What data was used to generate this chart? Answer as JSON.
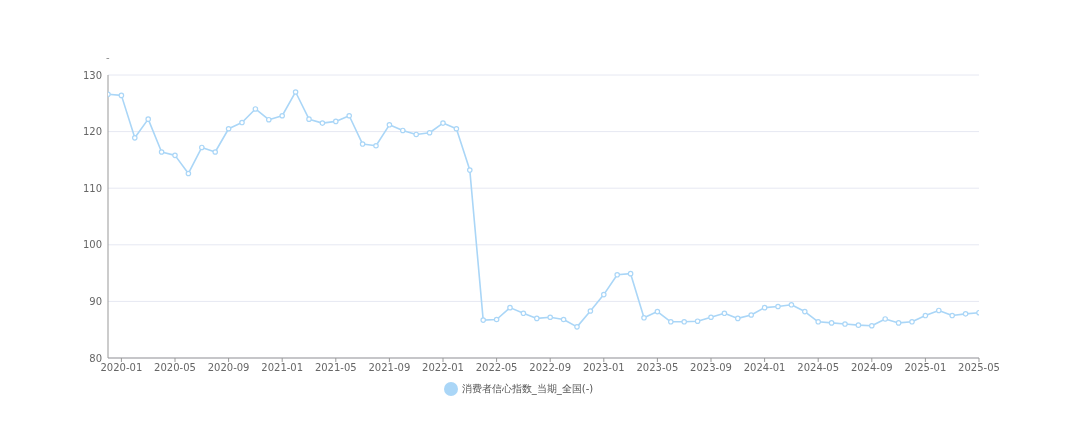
{
  "chart_data": {
    "type": "line",
    "title": "-",
    "x": [
      "2019-12",
      "2020-01",
      "2020-02",
      "2020-03",
      "2020-04",
      "2020-05",
      "2020-06",
      "2020-07",
      "2020-08",
      "2020-09",
      "2020-10",
      "2020-11",
      "2020-12",
      "2021-01",
      "2021-02",
      "2021-03",
      "2021-04",
      "2021-05",
      "2021-06",
      "2021-07",
      "2021-08",
      "2021-09",
      "2021-10",
      "2021-11",
      "2021-12",
      "2022-01",
      "2022-02",
      "2022-03",
      "2022-04",
      "2022-05",
      "2022-06",
      "2022-07",
      "2022-08",
      "2022-09",
      "2022-10",
      "2022-11",
      "2022-12",
      "2023-01",
      "2023-02",
      "2023-03",
      "2023-04",
      "2023-05",
      "2023-06",
      "2023-07",
      "2023-08",
      "2023-09",
      "2023-10",
      "2023-11",
      "2023-12",
      "2024-01",
      "2024-02",
      "2024-03",
      "2024-04",
      "2024-05",
      "2024-06",
      "2024-07",
      "2024-08",
      "2024-09",
      "2024-10",
      "2024-11",
      "2024-12",
      "2025-01",
      "2025-02",
      "2025-03",
      "2025-04",
      "2025-05"
    ],
    "series": [
      {
        "name": "消费者信心指数_当期_全国(-)",
        "color": "#aad6f7",
        "values": [
          126.6,
          126.4,
          118.9,
          122.2,
          116.4,
          115.8,
          112.6,
          117.2,
          116.4,
          120.5,
          121.6,
          124.0,
          122.1,
          122.8,
          127.0,
          122.2,
          121.5,
          121.8,
          122.8,
          117.8,
          117.5,
          121.2,
          120.2,
          119.5,
          119.8,
          121.5,
          120.5,
          113.2,
          86.7,
          86.8,
          88.9,
          87.9,
          87.0,
          87.2,
          86.8,
          85.5,
          88.3,
          91.2,
          94.7,
          94.9,
          87.1,
          88.2,
          86.4,
          86.4,
          86.5,
          87.2,
          87.9,
          87.0,
          87.6,
          88.9,
          89.1,
          89.4,
          88.2,
          86.4,
          86.2,
          86.0,
          85.8,
          85.7,
          86.9,
          86.2,
          86.4,
          87.5,
          88.4,
          87.5,
          87.8,
          88.0
        ]
      }
    ],
    "xlim": [
      "2019-12",
      "2025-05"
    ],
    "xticks": [
      "2020-01",
      "2020-05",
      "2020-09",
      "2021-01",
      "2021-05",
      "2021-09",
      "2022-01",
      "2022-05",
      "2022-09",
      "2023-01",
      "2023-05",
      "2023-09",
      "2024-01",
      "2024-05",
      "2024-09",
      "2025-01",
      "2025-05"
    ],
    "ylim": [
      80,
      130
    ],
    "yticks": [
      80,
      90,
      100,
      110,
      120,
      130
    ],
    "grid": "y",
    "legend": "bottom",
    "marker": "circle",
    "line_style": "solid"
  }
}
